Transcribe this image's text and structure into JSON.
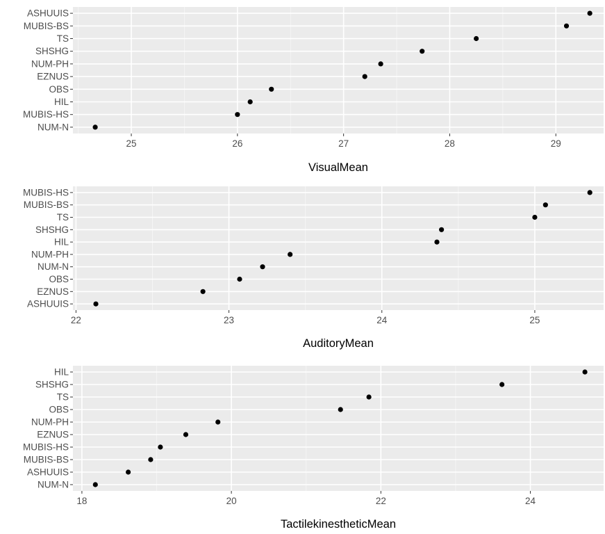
{
  "chart_data": [
    {
      "type": "scatter",
      "xlabel": "VisualMean",
      "ylabel": "",
      "xlim": [
        24.45,
        29.45
      ],
      "xticks": [
        25,
        26,
        27,
        28,
        29
      ],
      "x_tick_labels": [
        "25",
        "26",
        "27",
        "28",
        "29"
      ],
      "grid": true,
      "categories": [
        "ASHUUIS",
        "MUBIS-BS",
        "TS",
        "SHSHG",
        "NUM-PH",
        "EZNUS",
        "OBS",
        "HIL",
        "MUBIS-HS",
        "NUM-N"
      ],
      "values": [
        29.32,
        29.1,
        28.25,
        27.74,
        27.35,
        27.2,
        26.32,
        26.12,
        26.0,
        24.66
      ]
    },
    {
      "type": "scatter",
      "xlabel": "AuditoryMean",
      "ylabel": "",
      "xlim": [
        21.98,
        25.45
      ],
      "xticks": [
        22,
        23,
        24,
        25
      ],
      "x_tick_labels": [
        "22",
        "23",
        "24",
        "25"
      ],
      "grid": true,
      "categories": [
        "MUBIS-HS",
        "MUBIS-BS",
        "TS",
        "SHSHG",
        "HIL",
        "NUM-PH",
        "NUM-N",
        "OBS",
        "EZNUS",
        "ASHUUIS"
      ],
      "values": [
        25.36,
        25.07,
        25.0,
        24.39,
        24.36,
        23.4,
        23.22,
        23.07,
        22.83,
        22.13
      ]
    },
    {
      "type": "scatter",
      "xlabel": "TactilekinestheticMean",
      "ylabel": "",
      "xlim": [
        17.88,
        24.98
      ],
      "xticks": [
        18,
        20,
        22,
        24
      ],
      "x_tick_labels": [
        "18",
        "20",
        "22",
        "24"
      ],
      "grid": true,
      "categories": [
        "HIL",
        "SHSHG",
        "TS",
        "OBS",
        "NUM-PH",
        "EZNUS",
        "MUBIS-HS",
        "MUBIS-BS",
        "ASHUUIS",
        "NUM-N"
      ],
      "values": [
        24.73,
        23.62,
        21.84,
        21.46,
        19.82,
        19.39,
        19.05,
        18.92,
        18.62,
        18.18
      ]
    }
  ]
}
